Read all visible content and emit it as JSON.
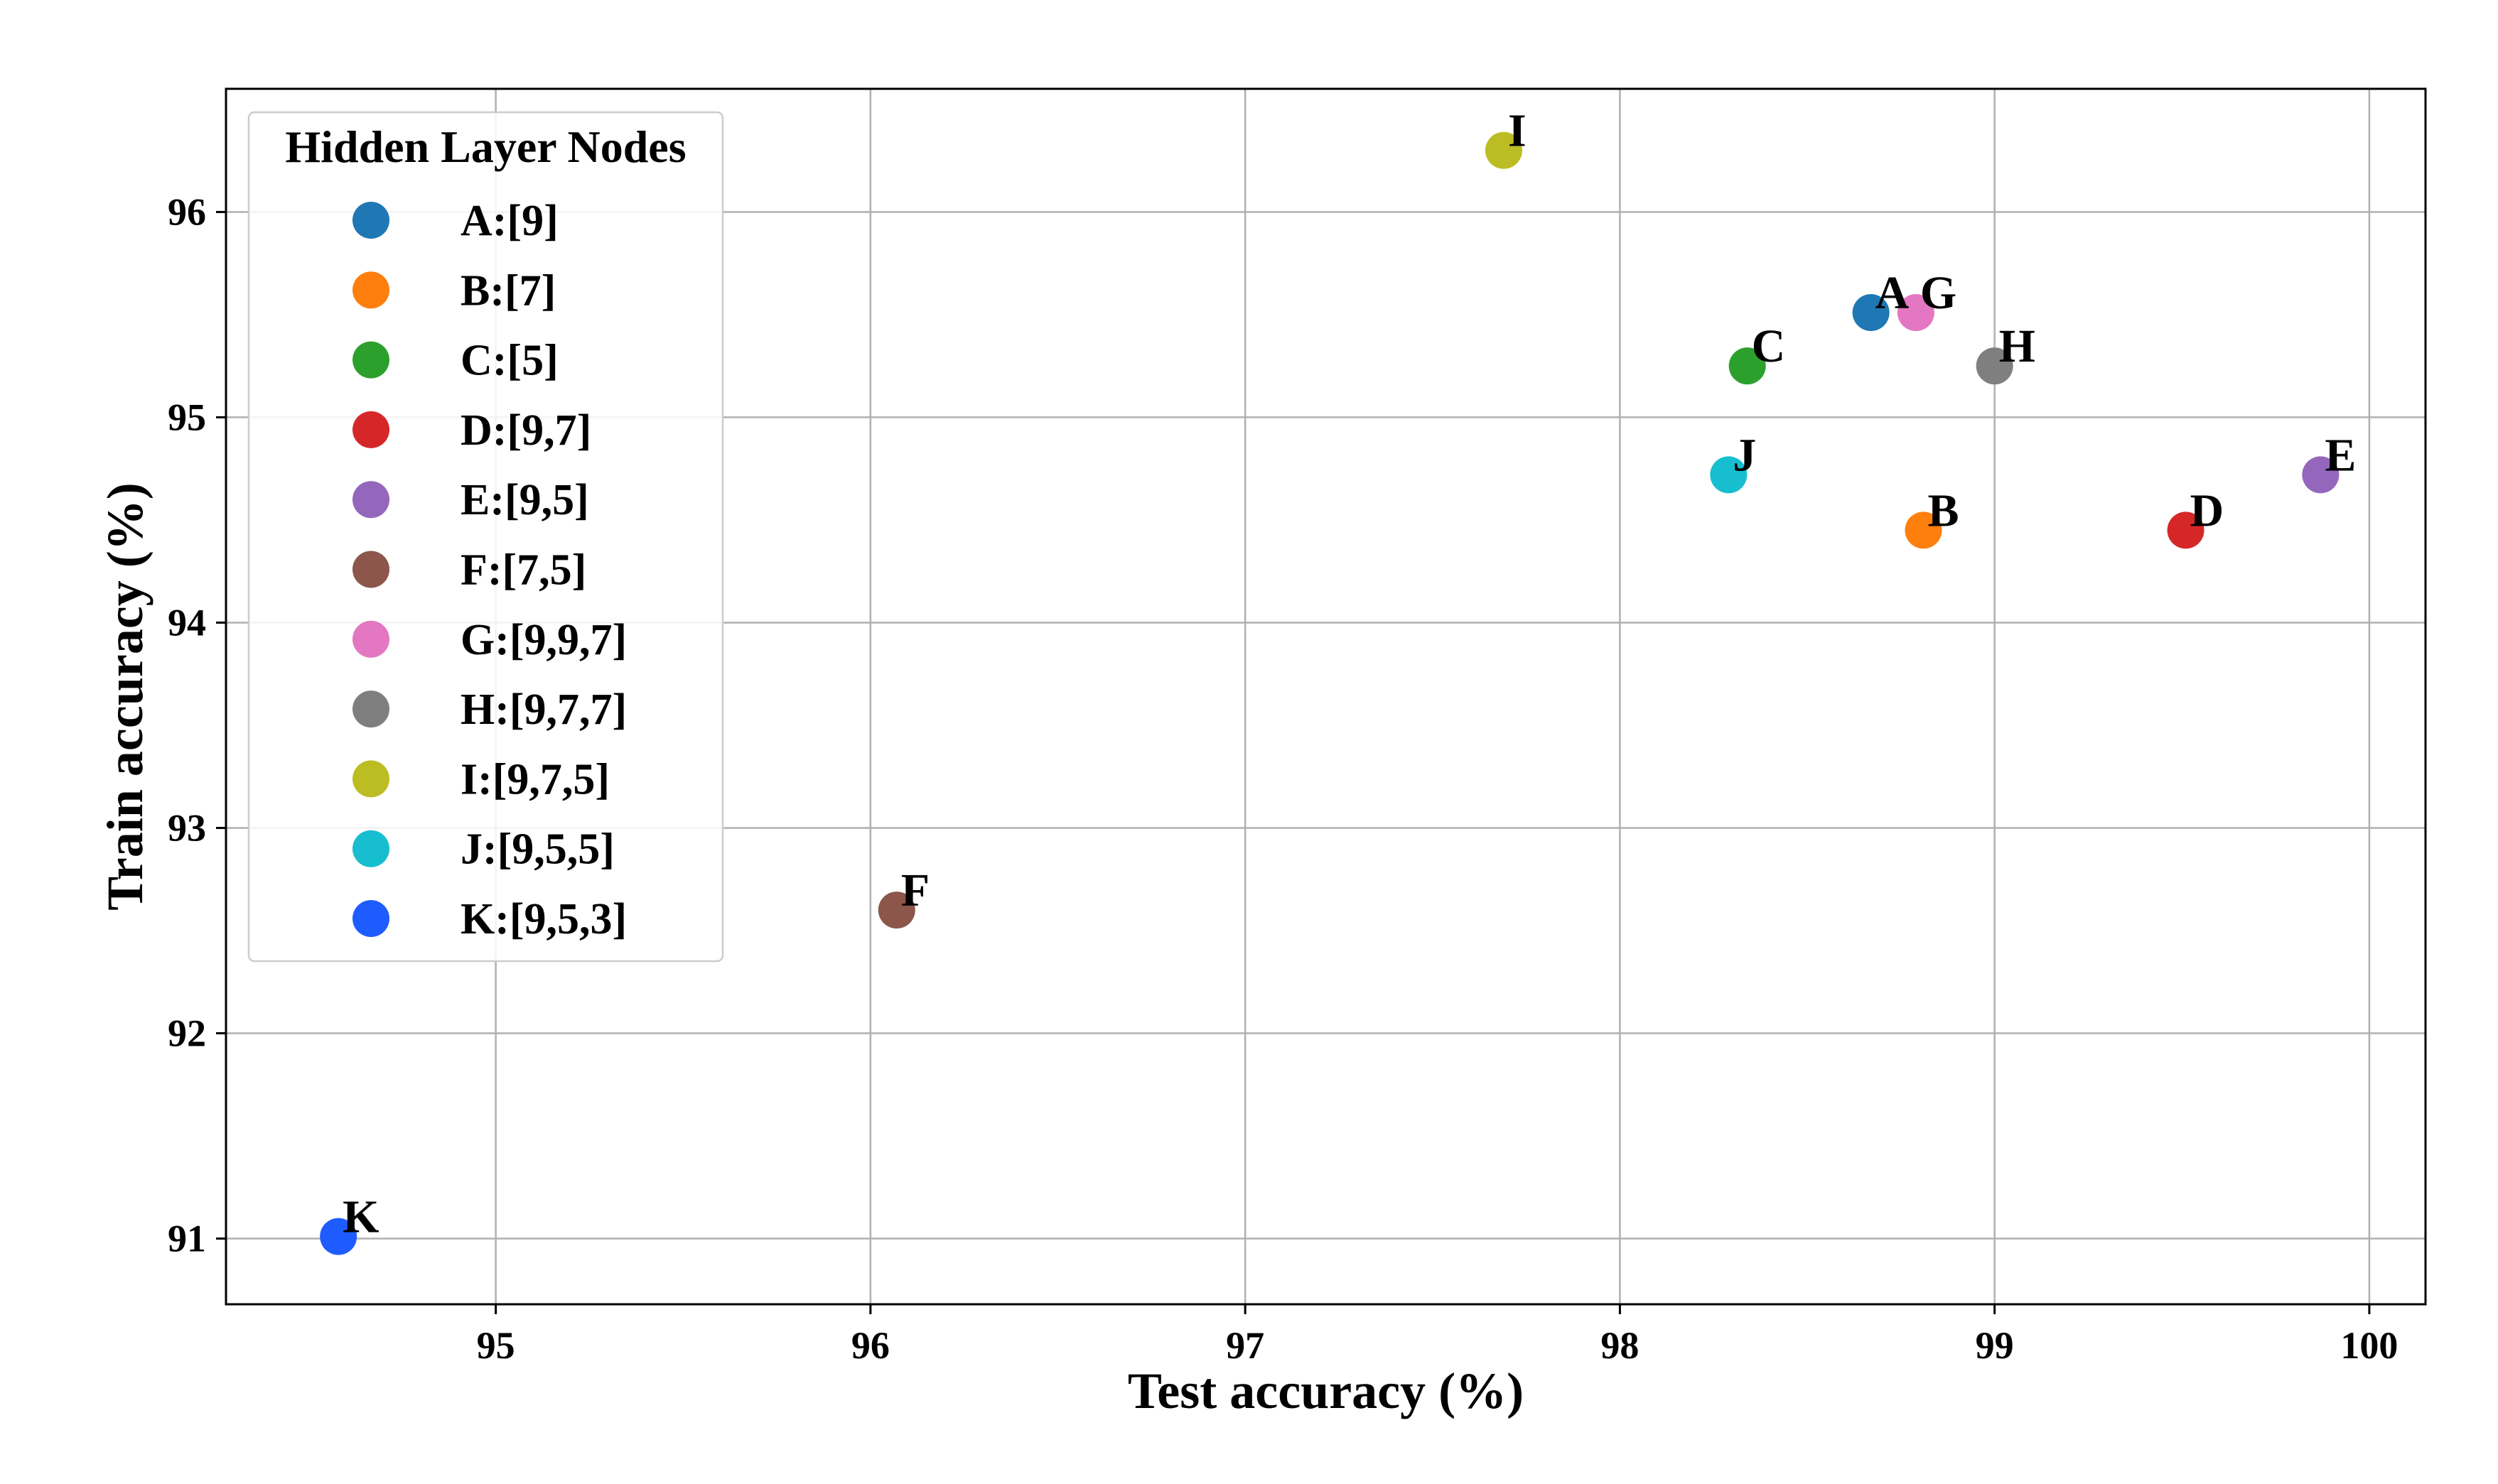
{
  "chart_data": {
    "type": "scatter",
    "title": "",
    "xlabel": "Test accuracy (%)",
    "ylabel": "Train accuracy (%)",
    "xlim": [
      94.28,
      100.15
    ],
    "ylim": [
      90.68,
      96.6
    ],
    "xticks": [
      95,
      96,
      97,
      98,
      99,
      100
    ],
    "yticks": [
      91,
      92,
      93,
      94,
      95,
      96
    ],
    "grid": true,
    "legend": {
      "title": "Hidden Layer Nodes",
      "placement": "upper-left"
    },
    "points": [
      {
        "label": "A",
        "legend": "A:[9]",
        "x": 98.67,
        "y": 95.51,
        "color": "#1f77b4"
      },
      {
        "label": "B",
        "legend": "B:[7]",
        "x": 98.81,
        "y": 94.45,
        "color": "#ff7f0e"
      },
      {
        "label": "C",
        "legend": "C:[5]",
        "x": 98.34,
        "y": 95.25,
        "color": "#2ca02c"
      },
      {
        "label": "D",
        "legend": "D:[9,7]",
        "x": 99.51,
        "y": 94.45,
        "color": "#d62728"
      },
      {
        "label": "E",
        "legend": "E:[9,5]",
        "x": 99.87,
        "y": 94.72,
        "color": "#9467bd"
      },
      {
        "label": "F",
        "legend": "F:[7,5]",
        "x": 96.07,
        "y": 92.6,
        "color": "#8c564b"
      },
      {
        "label": "G",
        "legend": "G:[9,9,7]",
        "x": 98.79,
        "y": 95.51,
        "color": "#e377c2"
      },
      {
        "label": "H",
        "legend": "H:[9,7,7]",
        "x": 99.0,
        "y": 95.25,
        "color": "#7f7f7f"
      },
      {
        "label": "I",
        "legend": "I:[9,7,5]",
        "x": 97.69,
        "y": 96.3,
        "color": "#bcbd22"
      },
      {
        "label": "J",
        "legend": "J:[9,5,5]",
        "x": 98.29,
        "y": 94.72,
        "color": "#17becf"
      },
      {
        "label": "K",
        "legend": "K:[9,5,3]",
        "x": 94.58,
        "y": 91.01,
        "color": "#1f5cff"
      }
    ]
  }
}
